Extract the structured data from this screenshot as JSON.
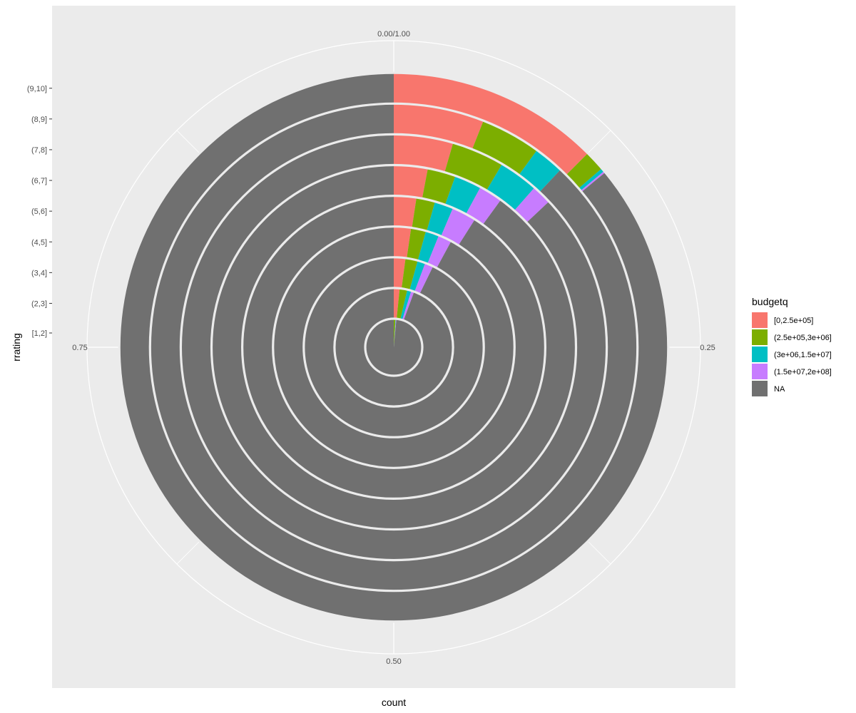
{
  "chart_data": {
    "type": "bar",
    "coord": "polar",
    "position": "fill",
    "title": "",
    "xlabel": "rrating",
    "ylabel": "count",
    "theta_ticks": [
      "0.00/1.00",
      "0.25",
      "0.50",
      "0.75"
    ],
    "theta_tick_values": [
      0,
      0.25,
      0.5,
      0.75
    ],
    "grid": true,
    "legend_position": "right",
    "legend_title": "budgetq",
    "categories": [
      "[1,2]",
      "(2,3]",
      "(3,4]",
      "(4,5]",
      "(5,6]",
      "(6,7]",
      "(7,8]",
      "(8,9]",
      "(9,10]"
    ],
    "series": [
      {
        "name": "[0,2.5e+05]",
        "color": "#F8766D",
        "values": [
          0.0,
          0.016,
          0.021,
          0.023,
          0.024,
          0.03,
          0.045,
          0.06,
          0.125
        ]
      },
      {
        "name": "(2.5e+05,3e+06]",
        "color": "#7CAE00",
        "values": [
          0.01,
          0.021,
          0.022,
          0.02,
          0.02,
          0.025,
          0.04,
          0.04,
          0.012
        ]
      },
      {
        "name": "(3e+06,1.5e+07]",
        "color": "#00BFC4",
        "values": [
          0.002,
          0.011,
          0.014,
          0.018,
          0.02,
          0.024,
          0.03,
          0.02,
          0.002
        ]
      },
      {
        "name": "(1.5e+07,2e+08]",
        "color": "#C77CFF",
        "values": [
          0.003,
          0.008,
          0.015,
          0.018,
          0.026,
          0.021,
          0.015,
          0.0,
          0.001
        ]
      },
      {
        "name": "NA",
        "color": "#707070",
        "values": [
          0.985,
          0.944,
          0.928,
          0.921,
          0.91,
          0.9,
          0.87,
          0.88,
          0.86
        ]
      }
    ]
  }
}
